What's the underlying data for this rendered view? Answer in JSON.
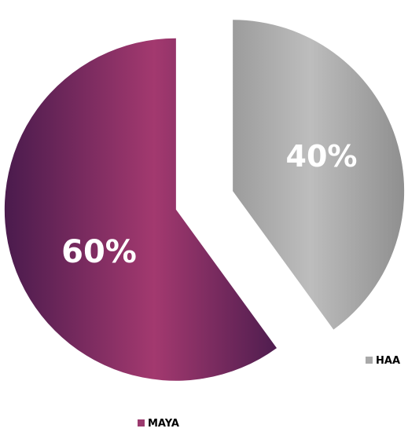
{
  "chart_data": {
    "type": "pie",
    "slices": [
      {
        "name": "HAA",
        "value": 40,
        "label": "40%",
        "color": "#a9a9a9"
      },
      {
        "name": "MAYA",
        "value": 60,
        "label": "60%",
        "color": "#9b3a6e"
      }
    ],
    "exploded": true,
    "legend_placement": "per-slice, near each slice (HAA right, MAYA bottom)"
  }
}
